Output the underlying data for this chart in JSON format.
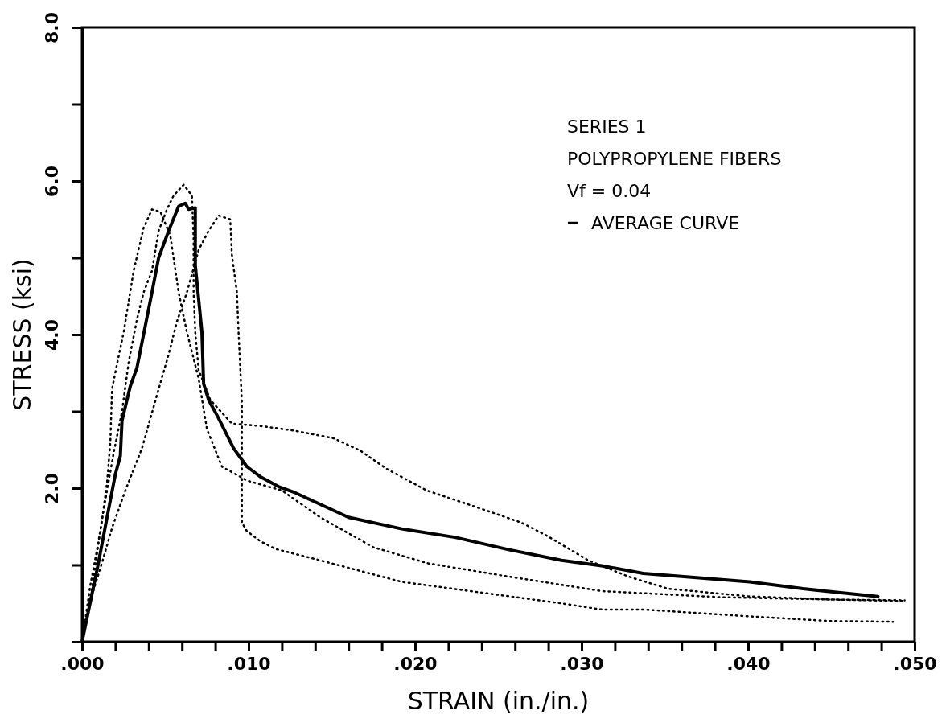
{
  "chart_data": {
    "type": "line",
    "xlabel": "STRAIN (in./in.)",
    "ylabel": "STRESS (ksi)",
    "xlim": [
      0,
      0.05
    ],
    "ylim": [
      0,
      8
    ],
    "xticks": [
      {
        "value": 0,
        "label": ".000"
      },
      {
        "value": 0.002,
        "label": null
      },
      {
        "value": 0.004,
        "label": null
      },
      {
        "value": 0.006,
        "label": null
      },
      {
        "value": 0.008,
        "label": null
      },
      {
        "value": 0.01,
        "label": ".010"
      },
      {
        "value": 0.012,
        "label": null
      },
      {
        "value": 0.014,
        "label": null
      },
      {
        "value": 0.016,
        "label": null
      },
      {
        "value": 0.018,
        "label": null
      },
      {
        "value": 0.02,
        "label": ".020"
      },
      {
        "value": 0.022,
        "label": null
      },
      {
        "value": 0.024,
        "label": null
      },
      {
        "value": 0.026,
        "label": null
      },
      {
        "value": 0.028,
        "label": null
      },
      {
        "value": 0.03,
        "label": ".030"
      },
      {
        "value": 0.032,
        "label": null
      },
      {
        "value": 0.034,
        "label": null
      },
      {
        "value": 0.036,
        "label": null
      },
      {
        "value": 0.038,
        "label": null
      },
      {
        "value": 0.04,
        "label": ".040"
      },
      {
        "value": 0.042,
        "label": null
      },
      {
        "value": 0.044,
        "label": null
      },
      {
        "value": 0.046,
        "label": null
      },
      {
        "value": 0.048,
        "label": null
      },
      {
        "value": 0.05,
        "label": ".050"
      }
    ],
    "yticks": [
      {
        "value": 0,
        "label": null
      },
      {
        "value": 1,
        "label": null
      },
      {
        "value": 2,
        "label": "2.0"
      },
      {
        "value": 3,
        "label": null
      },
      {
        "value": 4,
        "label": "4.0"
      },
      {
        "value": 5,
        "label": null
      },
      {
        "value": 6,
        "label": "6.0"
      },
      {
        "value": 7,
        "label": null
      },
      {
        "value": 8,
        "label": "8.0"
      }
    ],
    "grid": false,
    "legend": "top right",
    "marker": "none",
    "annotations": [
      "SERIES 1",
      "POLYPROPYLENE FIBERS",
      "Vf = 0.04"
    ],
    "series": [
      {
        "color": "#000000",
        "line_style": "dotted",
        "x": [
          0,
          0.0005,
          0.0009,
          0.0012,
          0.0015,
          0.0017,
          0.0018,
          0.0022,
          0.0025,
          0.0031,
          0.0037,
          0.0042,
          0.0047,
          0.0053,
          0.0058,
          0.0063,
          0.007,
          0.0075,
          0.0084,
          0.0099,
          0.012,
          0.0143,
          0.0175,
          0.0208,
          0.0256,
          0.0312,
          0.0384,
          0.0494
        ],
        "values": [
          0,
          0.74,
          1.2,
          1.58,
          2.07,
          2.6,
          3.29,
          3.72,
          4.03,
          4.83,
          5.39,
          5.63,
          5.6,
          5.29,
          4.55,
          4.03,
          3.43,
          2.77,
          2.28,
          2.1,
          1.97,
          1.62,
          1.23,
          1.02,
          0.85,
          0.66,
          0.58,
          0.53
        ]
      },
      {
        "color": "#000000",
        "line_style": "dotted",
        "x": [
          0,
          0.0006,
          0.0012,
          0.0019,
          0.0024,
          0.0028,
          0.0033,
          0.0037,
          0.0042,
          0.0046,
          0.0051,
          0.0055,
          0.0061,
          0.0066,
          0.0067,
          0.0067,
          0.0068,
          0.007,
          0.0077,
          0.009,
          0.0107,
          0.0127,
          0.0151,
          0.0167,
          0.0183,
          0.0207,
          0.024,
          0.0264,
          0.028,
          0.0304,
          0.0328,
          0.0352,
          0.0401,
          0.0449,
          0.0494
        ],
        "values": [
          0,
          0.7,
          1.6,
          2.46,
          3.0,
          3.64,
          4.2,
          4.55,
          4.83,
          5.35,
          5.63,
          5.81,
          5.95,
          5.81,
          5.25,
          4.55,
          4.03,
          3.54,
          3.15,
          2.84,
          2.81,
          2.75,
          2.65,
          2.49,
          2.25,
          1.97,
          1.73,
          1.55,
          1.37,
          1.06,
          0.85,
          0.69,
          0.59,
          0.55,
          0.54
        ]
      },
      {
        "color": "#000000",
        "line_style": "dotted",
        "x": [
          0,
          0.0002,
          0.0007,
          0.0012,
          0.0018,
          0.0026,
          0.0036,
          0.0046,
          0.0052,
          0.0057,
          0.0063,
          0.007,
          0.0076,
          0.0082,
          0.0089,
          0.009,
          0.0093,
          0.0094,
          0.0096,
          0.0096,
          0.0099,
          0.0107,
          0.0116,
          0.0143,
          0.0192,
          0.024,
          0.0288,
          0.0312,
          0.0337,
          0.0401,
          0.0449,
          0.0487
        ],
        "values": [
          0,
          0.26,
          0.68,
          1.03,
          1.48,
          1.97,
          2.52,
          3.29,
          3.74,
          4.17,
          4.55,
          5.1,
          5.35,
          5.55,
          5.5,
          5.04,
          4.55,
          4.03,
          3.12,
          1.55,
          1.44,
          1.31,
          1.21,
          1.06,
          0.78,
          0.64,
          0.5,
          0.42,
          0.42,
          0.33,
          0.27,
          0.26
        ]
      },
      {
        "name": "AVERAGE CURVE",
        "color": "#000000",
        "line_style": "solid",
        "x": [
          0,
          0.00096,
          0.0015,
          0.002,
          0.0023,
          0.0024,
          0.0029,
          0.0033,
          0.0042,
          0.0046,
          0.0052,
          0.0058,
          0.0062,
          0.0064,
          0.0068,
          0.0068,
          0.0072,
          0.0073,
          0.0076,
          0.0082,
          0.0091,
          0.0099,
          0.0107,
          0.0118,
          0.0128,
          0.016,
          0.0192,
          0.0224,
          0.0256,
          0.0288,
          0.0312,
          0.0337,
          0.0401,
          0.0433,
          0.0478
        ],
        "values": [
          0,
          1.0,
          1.62,
          2.18,
          2.42,
          2.88,
          3.33,
          3.57,
          4.55,
          5.0,
          5.35,
          5.67,
          5.71,
          5.63,
          5.65,
          4.9,
          4.03,
          3.36,
          3.15,
          2.91,
          2.52,
          2.28,
          2.15,
          2.02,
          1.94,
          1.62,
          1.47,
          1.36,
          1.2,
          1.06,
          0.99,
          0.89,
          0.78,
          0.69,
          0.59
        ]
      }
    ]
  }
}
